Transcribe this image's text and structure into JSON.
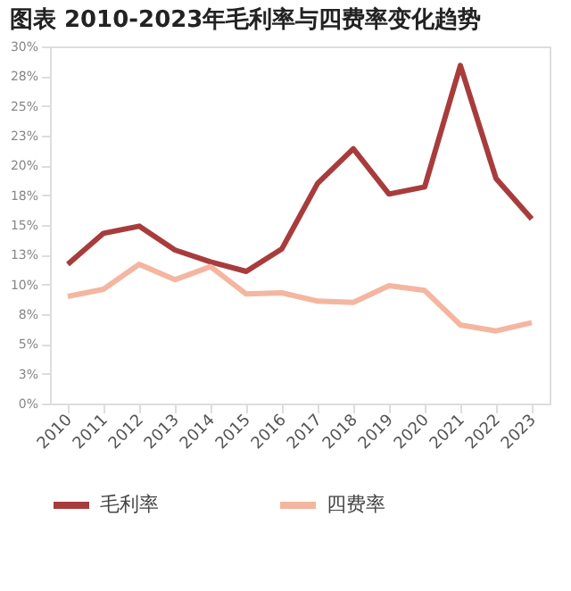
{
  "chart_data": {
    "type": "line",
    "title": "图表 2010-2023年毛利率与四费率变化趋势",
    "categories": [
      "2010",
      "2011",
      "2012",
      "2013",
      "2014",
      "2015",
      "2016",
      "2017",
      "2018",
      "2019",
      "2020",
      "2021",
      "2022",
      "2023"
    ],
    "series": [
      {
        "name": "毛利率",
        "color": "#a83c3c",
        "values": [
          11.7,
          14.3,
          14.9,
          12.9,
          11.9,
          11.1,
          13.0,
          18.5,
          21.4,
          17.6,
          18.2,
          28.4,
          18.9,
          15.5
        ]
      },
      {
        "name": "四费率",
        "color": "#f4b6a0",
        "values": [
          9.0,
          9.6,
          11.7,
          10.4,
          11.5,
          9.2,
          9.3,
          8.6,
          8.5,
          9.9,
          9.5,
          6.6,
          6.1,
          6.8
        ]
      }
    ],
    "ylim": [
      0,
      30
    ],
    "yticks": [
      {
        "value": 0,
        "label": "0%"
      },
      {
        "value": 2.5,
        "label": "3%"
      },
      {
        "value": 5,
        "label": "5%"
      },
      {
        "value": 7.5,
        "label": "8%"
      },
      {
        "value": 10,
        "label": "10%"
      },
      {
        "value": 12.5,
        "label": "13%"
      },
      {
        "value": 15,
        "label": "15%"
      },
      {
        "value": 17.5,
        "label": "18%"
      },
      {
        "value": 20,
        "label": "20%"
      },
      {
        "value": 22.5,
        "label": "23%"
      },
      {
        "value": 25,
        "label": "25%"
      },
      {
        "value": 27.5,
        "label": "28%"
      },
      {
        "value": 30,
        "label": "30%"
      }
    ],
    "grid": false,
    "legend": "bottom",
    "marker": "none",
    "line_style": "solid"
  }
}
